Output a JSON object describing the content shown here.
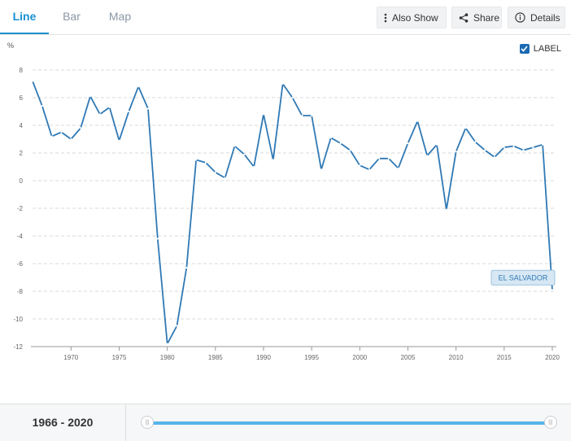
{
  "tabs": [
    {
      "label": "Line",
      "active": true
    },
    {
      "label": "Bar",
      "active": false
    },
    {
      "label": "Map",
      "active": false
    }
  ],
  "actions": {
    "also_show": "Also Show",
    "share": "Share",
    "details": "Details"
  },
  "label_toggle": {
    "text": "LABEL",
    "checked": true
  },
  "accent_color": "#1c90d0",
  "line_color": "#2f79b5",
  "chart_data": {
    "type": "line",
    "ylabel": "%",
    "xlim": [
      1966,
      2020
    ],
    "ylim": [
      -12,
      8
    ],
    "yticks": [
      -12,
      -10,
      -8,
      -6,
      -4,
      -2,
      0,
      2,
      4,
      6,
      8
    ],
    "xticks": [
      1970,
      1975,
      1980,
      1985,
      1990,
      1995,
      2000,
      2005,
      2010,
      2015,
      2020
    ],
    "grid": true,
    "x": [
      1966,
      1967,
      1968,
      1969,
      1970,
      1971,
      1972,
      1973,
      1974,
      1975,
      1976,
      1977,
      1978,
      1979,
      1980,
      1981,
      1982,
      1983,
      1984,
      1985,
      1986,
      1987,
      1988,
      1989,
      1990,
      1991,
      1992,
      1993,
      1994,
      1995,
      1996,
      1997,
      1998,
      1999,
      2000,
      2001,
      2002,
      2003,
      2004,
      2005,
      2006,
      2007,
      2008,
      2009,
      2010,
      2011,
      2012,
      2013,
      2014,
      2015,
      2016,
      2017,
      2018,
      2019,
      2020
    ],
    "series": [
      {
        "name": "EL SALVADOR",
        "values": [
          7.2,
          5.4,
          3.2,
          3.5,
          3.0,
          3.8,
          6.1,
          4.8,
          5.3,
          2.9,
          5.0,
          6.8,
          5.2,
          -4.2,
          -11.8,
          -10.5,
          -6.3,
          1.5,
          1.3,
          0.6,
          0.2,
          2.5,
          1.9,
          1.0,
          4.8,
          1.5,
          7.0,
          6.0,
          4.7,
          4.7,
          0.8,
          3.1,
          2.7,
          2.2,
          1.1,
          0.8,
          1.6,
          1.6,
          0.9,
          2.7,
          4.3,
          1.8,
          2.6,
          -2.1,
          2.1,
          3.8,
          2.8,
          2.2,
          1.7,
          2.4,
          2.5,
          2.2,
          2.4,
          2.6,
          -7.9
        ]
      }
    ]
  },
  "footer": {
    "range": "1966 - 2020"
  }
}
